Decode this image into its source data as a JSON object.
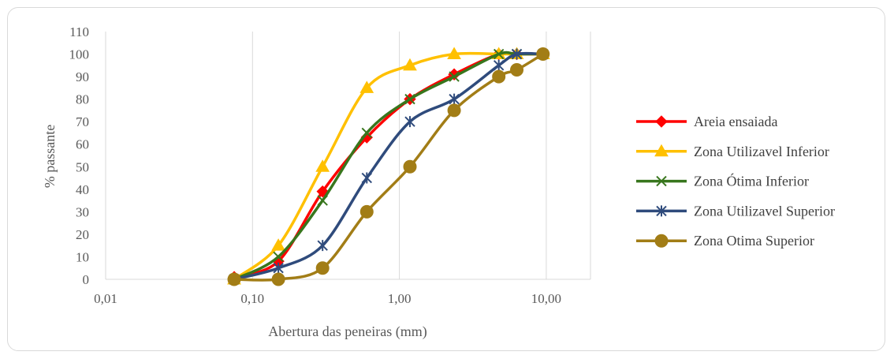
{
  "chart_data": {
    "type": "line",
    "title": "",
    "xlabel": "Abertura das peneiras (mm)",
    "ylabel": "% passante",
    "x_scale": "log",
    "xlim": [
      0.01,
      20
    ],
    "ylim": [
      0,
      110
    ],
    "x_ticks": [
      "0,01",
      "0,10",
      "1,00",
      "10,00"
    ],
    "y_ticks": [
      "0",
      "10",
      "20",
      "30",
      "40",
      "50",
      "60",
      "70",
      "80",
      "90",
      "100",
      "110"
    ],
    "grid": "vertical major",
    "legend_position": "right",
    "series": [
      {
        "name": "Areia ensaiada",
        "color": "#ff0000",
        "marker": "diamond",
        "x": [
          0.075,
          0.15,
          0.3,
          0.6,
          1.18,
          2.36,
          4.75,
          6.3,
          9.5
        ],
        "y": [
          1,
          8,
          39,
          63,
          80,
          91,
          100,
          100,
          100
        ]
      },
      {
        "name": "Zona Utilizavel Inferior",
        "color": "#ffc000",
        "marker": "triangle",
        "x": [
          0.075,
          0.15,
          0.3,
          0.6,
          1.18,
          2.36,
          4.75,
          6.3,
          9.5
        ],
        "y": [
          0,
          15,
          50,
          85,
          95,
          100,
          100,
          100,
          100
        ]
      },
      {
        "name": "Zona Ótima Inferior",
        "color": "#38761d",
        "marker": "x",
        "x": [
          0.075,
          0.15,
          0.3,
          0.6,
          1.18,
          2.36,
          4.75,
          6.3,
          9.5
        ],
        "y": [
          0,
          10,
          35,
          65,
          80,
          90,
          100,
          100,
          100
        ]
      },
      {
        "name": "Zona Utilizavel Superior",
        "color": "#2f4b7c",
        "marker": "asterisk",
        "x": [
          0.075,
          0.15,
          0.3,
          0.6,
          1.18,
          2.36,
          4.75,
          6.3,
          9.5
        ],
        "y": [
          0,
          5,
          15,
          45,
          70,
          80,
          95,
          100,
          100
        ]
      },
      {
        "name": "Zona Otima Superior",
        "color": "#a27d16",
        "marker": "circle",
        "x": [
          0.075,
          0.15,
          0.3,
          0.6,
          1.18,
          2.36,
          4.75,
          6.3,
          9.5
        ],
        "y": [
          0,
          0,
          5,
          30,
          50,
          75,
          90,
          93,
          100
        ]
      }
    ]
  }
}
